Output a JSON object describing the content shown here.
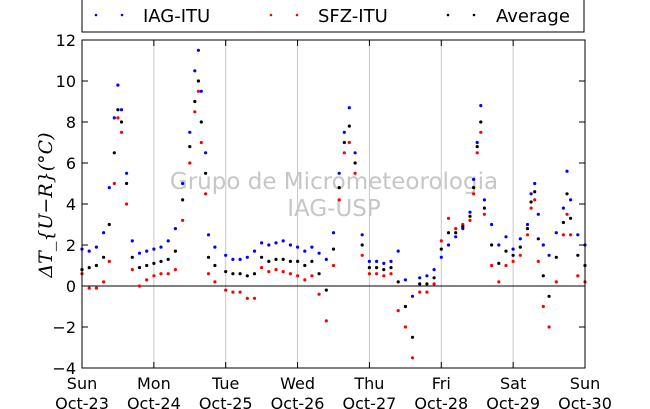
{
  "chart_data": {
    "type": "scatter",
    "ylabel": "ΔT_{U−R}(°C)",
    "ylim": [
      -4,
      12
    ],
    "xlim": [
      0,
      7
    ],
    "yticks": [
      -4,
      -2,
      0,
      2,
      4,
      6,
      8,
      10,
      12
    ],
    "xticks": [
      {
        "x": 0,
        "day": "Sun",
        "date": "Oct-23"
      },
      {
        "x": 1,
        "day": "Mon",
        "date": "Oct-24"
      },
      {
        "x": 2,
        "day": "Tue",
        "date": "Oct-25"
      },
      {
        "x": 3,
        "day": "Wed",
        "date": "Oct-26"
      },
      {
        "x": 4,
        "day": "Thu",
        "date": "Oct-27"
      },
      {
        "x": 5,
        "day": "Fri",
        "date": "Oct-28"
      },
      {
        "x": 6,
        "day": "Sat",
        "date": "Oct-29"
      },
      {
        "x": 7,
        "day": "Sun",
        "date": "Oct-30"
      }
    ],
    "grid": "vertical",
    "zero_line": true,
    "legend_position": "top",
    "watermark": [
      "Grupo de Micrometeorologia",
      "IAG-USP"
    ],
    "series": [
      {
        "name": "IAG-ITU",
        "color": "#0000ff",
        "points": [
          [
            0.0,
            1.8
          ],
          [
            0.1,
            1.7
          ],
          [
            0.2,
            1.9
          ],
          [
            0.3,
            2.6
          ],
          [
            0.38,
            4.8
          ],
          [
            0.45,
            8.2
          ],
          [
            0.5,
            9.8
          ],
          [
            0.55,
            8.6
          ],
          [
            0.62,
            5.5
          ],
          [
            0.7,
            2.2
          ],
          [
            0.8,
            1.6
          ],
          [
            0.9,
            1.7
          ],
          [
            1.0,
            1.8
          ],
          [
            1.1,
            1.9
          ],
          [
            1.2,
            2.2
          ],
          [
            1.3,
            2.8
          ],
          [
            1.4,
            5.0
          ],
          [
            1.5,
            7.5
          ],
          [
            1.57,
            10.5
          ],
          [
            1.62,
            11.5
          ],
          [
            1.66,
            9.5
          ],
          [
            1.72,
            6.5
          ],
          [
            1.76,
            2.5
          ],
          [
            1.85,
            1.9
          ],
          [
            2.0,
            1.5
          ],
          [
            2.1,
            1.3
          ],
          [
            2.2,
            1.3
          ],
          [
            2.3,
            1.4
          ],
          [
            2.4,
            1.7
          ],
          [
            2.5,
            2.1
          ],
          [
            2.6,
            2.0
          ],
          [
            2.7,
            2.1
          ],
          [
            2.8,
            2.2
          ],
          [
            2.9,
            2.0
          ],
          [
            3.0,
            1.9
          ],
          [
            3.1,
            1.7
          ],
          [
            3.2,
            1.9
          ],
          [
            3.3,
            1.6
          ],
          [
            3.4,
            1.3
          ],
          [
            3.5,
            2.6
          ],
          [
            3.58,
            5.5
          ],
          [
            3.65,
            7.5
          ],
          [
            3.72,
            8.7
          ],
          [
            3.8,
            6.5
          ],
          [
            3.9,
            2.5
          ],
          [
            4.0,
            1.2
          ],
          [
            4.1,
            1.2
          ],
          [
            4.2,
            1.1
          ],
          [
            4.3,
            1.2
          ],
          [
            4.4,
            1.7
          ],
          [
            4.5,
            0.3
          ],
          [
            4.6,
            -0.5
          ],
          [
            4.7,
            0.4
          ],
          [
            4.8,
            0.5
          ],
          [
            4.9,
            0.8
          ],
          [
            5.0,
            1.4
          ],
          [
            5.1,
            2.0
          ],
          [
            5.2,
            2.4
          ],
          [
            5.3,
            2.8
          ],
          [
            5.4,
            3.6
          ],
          [
            5.45,
            5.2
          ],
          [
            5.5,
            7.0
          ],
          [
            5.55,
            8.8
          ],
          [
            5.6,
            4.2
          ],
          [
            5.7,
            3.0
          ],
          [
            5.8,
            2.0
          ],
          [
            5.9,
            2.4
          ],
          [
            6.0,
            1.8
          ],
          [
            6.1,
            2.3
          ],
          [
            6.2,
            3.0
          ],
          [
            6.25,
            4.5
          ],
          [
            6.3,
            5.0
          ],
          [
            6.35,
            3.5
          ],
          [
            6.42,
            2.0
          ],
          [
            6.5,
            1.5
          ],
          [
            6.6,
            2.6
          ],
          [
            6.7,
            3.8
          ],
          [
            6.75,
            5.6
          ],
          [
            6.8,
            4.2
          ],
          [
            6.9,
            2.5
          ],
          [
            7.0,
            2.0
          ]
        ]
      },
      {
        "name": "SFZ-ITU",
        "color": "#ff0000",
        "points": [
          [
            0.0,
            0.6
          ],
          [
            0.1,
            -0.1
          ],
          [
            0.2,
            -0.1
          ],
          [
            0.3,
            0.2
          ],
          [
            0.38,
            1.2
          ],
          [
            0.45,
            5.0
          ],
          [
            0.5,
            8.2
          ],
          [
            0.55,
            7.5
          ],
          [
            0.62,
            4.0
          ],
          [
            0.7,
            0.8
          ],
          [
            0.8,
            0.0
          ],
          [
            0.9,
            0.3
          ],
          [
            1.0,
            0.5
          ],
          [
            1.1,
            0.6
          ],
          [
            1.2,
            0.6
          ],
          [
            1.3,
            0.8
          ],
          [
            1.4,
            3.2
          ],
          [
            1.5,
            6.0
          ],
          [
            1.57,
            8.5
          ],
          [
            1.62,
            9.5
          ],
          [
            1.66,
            7.0
          ],
          [
            1.72,
            4.5
          ],
          [
            1.76,
            0.6
          ],
          [
            1.85,
            0.2
          ],
          [
            2.0,
            -0.2
          ],
          [
            2.1,
            -0.3
          ],
          [
            2.2,
            -0.3
          ],
          [
            2.3,
            -0.6
          ],
          [
            2.4,
            -0.6
          ],
          [
            2.5,
            0.9
          ],
          [
            2.6,
            0.7
          ],
          [
            2.7,
            0.8
          ],
          [
            2.8,
            0.7
          ],
          [
            2.9,
            0.6
          ],
          [
            3.0,
            0.5
          ],
          [
            3.1,
            0.3
          ],
          [
            3.2,
            0.5
          ],
          [
            3.3,
            -0.4
          ],
          [
            3.4,
            -1.7
          ],
          [
            3.5,
            1.0
          ],
          [
            3.58,
            4.2
          ],
          [
            3.65,
            6.5
          ],
          [
            3.72,
            7.0
          ],
          [
            3.8,
            5.5
          ],
          [
            3.9,
            1.5
          ],
          [
            4.0,
            0.6
          ],
          [
            4.1,
            0.6
          ],
          [
            4.2,
            0.5
          ],
          [
            4.3,
            0.6
          ],
          [
            4.4,
            -1.2
          ],
          [
            4.5,
            -2.0
          ],
          [
            4.6,
            -3.5
          ],
          [
            4.7,
            -0.3
          ],
          [
            4.8,
            -0.3
          ],
          [
            4.9,
            0.1
          ],
          [
            5.0,
            2.2
          ],
          [
            5.1,
            3.3
          ],
          [
            5.2,
            2.8
          ],
          [
            5.3,
            3.0
          ],
          [
            5.4,
            3.2
          ],
          [
            5.45,
            4.5
          ],
          [
            5.5,
            6.5
          ],
          [
            5.55,
            7.5
          ],
          [
            5.6,
            3.5
          ],
          [
            5.7,
            1.0
          ],
          [
            5.8,
            0.2
          ],
          [
            5.9,
            1.0
          ],
          [
            6.0,
            1.2
          ],
          [
            6.1,
            1.5
          ],
          [
            6.2,
            2.5
          ],
          [
            6.25,
            3.8
          ],
          [
            6.3,
            4.2
          ],
          [
            6.35,
            1.2
          ],
          [
            6.42,
            -1.0
          ],
          [
            6.5,
            -2.0
          ],
          [
            6.6,
            0.2
          ],
          [
            6.7,
            2.5
          ],
          [
            6.75,
            3.5
          ],
          [
            6.8,
            2.5
          ],
          [
            6.9,
            0.5
          ],
          [
            7.0,
            0.2
          ]
        ]
      },
      {
        "name": "Average",
        "color": "#000000",
        "points": [
          [
            0.0,
            0.8
          ],
          [
            0.1,
            0.9
          ],
          [
            0.2,
            1.0
          ],
          [
            0.3,
            1.4
          ],
          [
            0.38,
            3.0
          ],
          [
            0.45,
            6.5
          ],
          [
            0.5,
            8.6
          ],
          [
            0.55,
            8.0
          ],
          [
            0.62,
            5.0
          ],
          [
            0.7,
            1.4
          ],
          [
            0.8,
            0.9
          ],
          [
            0.9,
            1.0
          ],
          [
            1.0,
            1.1
          ],
          [
            1.1,
            1.2
          ],
          [
            1.2,
            1.3
          ],
          [
            1.3,
            1.7
          ],
          [
            1.4,
            4.2
          ],
          [
            1.5,
            6.8
          ],
          [
            1.57,
            9.0
          ],
          [
            1.62,
            10.0
          ],
          [
            1.66,
            8.0
          ],
          [
            1.72,
            5.5
          ],
          [
            1.76,
            1.4
          ],
          [
            1.85,
            1.0
          ],
          [
            2.0,
            0.7
          ],
          [
            2.1,
            0.6
          ],
          [
            2.2,
            0.6
          ],
          [
            2.3,
            0.5
          ],
          [
            2.4,
            0.6
          ],
          [
            2.5,
            1.4
          ],
          [
            2.6,
            1.2
          ],
          [
            2.7,
            1.3
          ],
          [
            2.8,
            1.3
          ],
          [
            2.9,
            1.2
          ],
          [
            3.0,
            1.2
          ],
          [
            3.1,
            1.0
          ],
          [
            3.2,
            1.2
          ],
          [
            3.3,
            0.6
          ],
          [
            3.4,
            -0.2
          ],
          [
            3.5,
            1.8
          ],
          [
            3.58,
            4.8
          ],
          [
            3.65,
            7.0
          ],
          [
            3.72,
            7.8
          ],
          [
            3.8,
            6.0
          ],
          [
            3.9,
            2.0
          ],
          [
            4.0,
            0.9
          ],
          [
            4.1,
            0.9
          ],
          [
            4.2,
            0.8
          ],
          [
            4.3,
            0.9
          ],
          [
            4.4,
            0.2
          ],
          [
            4.5,
            -1.0
          ],
          [
            4.6,
            -2.5
          ],
          [
            4.7,
            0.1
          ],
          [
            4.8,
            0.1
          ],
          [
            4.9,
            0.4
          ],
          [
            5.0,
            1.8
          ],
          [
            5.1,
            2.6
          ],
          [
            5.2,
            2.6
          ],
          [
            5.3,
            2.9
          ],
          [
            5.4,
            3.4
          ],
          [
            5.45,
            4.8
          ],
          [
            5.5,
            6.8
          ],
          [
            5.55,
            8.0
          ],
          [
            5.6,
            3.8
          ],
          [
            5.7,
            2.0
          ],
          [
            5.8,
            1.1
          ],
          [
            5.9,
            1.7
          ],
          [
            6.0,
            1.5
          ],
          [
            6.1,
            1.9
          ],
          [
            6.2,
            2.8
          ],
          [
            6.25,
            4.1
          ],
          [
            6.3,
            4.6
          ],
          [
            6.35,
            2.3
          ],
          [
            6.42,
            0.5
          ],
          [
            6.5,
            -0.5
          ],
          [
            6.6,
            1.4
          ],
          [
            6.7,
            3.1
          ],
          [
            6.75,
            4.5
          ],
          [
            6.8,
            3.3
          ],
          [
            6.9,
            1.5
          ],
          [
            7.0,
            1.0
          ]
        ]
      }
    ]
  }
}
